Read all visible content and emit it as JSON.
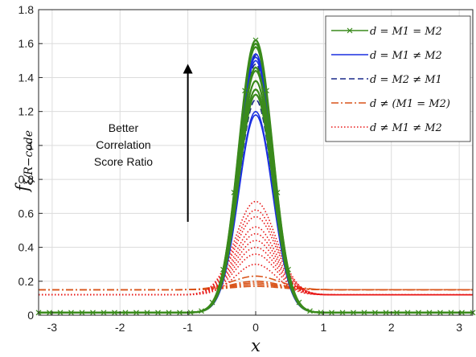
{
  "chart_data": {
    "type": "line",
    "title": "",
    "xlabel": "x",
    "ylabel": "f",
    "ylabel_subscript": "ξ/R−code",
    "xlim": [
      -3.2,
      3.2
    ],
    "ylim": [
      0,
      1.8
    ],
    "xticks": [
      -3,
      -2,
      -1,
      0,
      1,
      2,
      3
    ],
    "yticks": [
      0,
      0.2,
      0.4,
      0.6,
      0.8,
      1,
      1.2,
      1.4,
      1.6,
      1.8
    ],
    "xtick_labels": [
      "-3",
      "-2",
      "-1",
      "0",
      "1",
      "2",
      "3"
    ],
    "ytick_labels": [
      "0",
      "0.2",
      "0.4",
      "0.6",
      "0.8",
      "1",
      "1.2",
      "1.4",
      "1.6",
      "1.8"
    ],
    "grid": true,
    "legend_position": "top-right",
    "annotation": {
      "lines": [
        "Better",
        "Correlation",
        "Score Ratio"
      ],
      "arrow_x": -1,
      "arrow_from_y": 0.55,
      "arrow_to_y": 1.48
    },
    "series": [
      {
        "name": "d = M1 = M2",
        "color": "#3a8a1c",
        "style": "solid-x",
        "family": "gaussian",
        "sigma": 0.25,
        "peaks": [
          1.62,
          1.6,
          1.58,
          1.46,
          1.44,
          1.38,
          1.33,
          1.3
        ],
        "floor": 0.015
      },
      {
        "name": "d = M1 ≠ M2",
        "color": "#1a2fe0",
        "style": "solid",
        "family": "gaussian",
        "sigma": 0.25,
        "peaks": [
          1.54,
          1.52,
          1.5,
          1.3,
          1.2,
          1.18
        ],
        "floor": 0.015
      },
      {
        "name": "d = M2 ≠ M1",
        "color": "#1a2a8a",
        "style": "dashed",
        "family": "gaussian",
        "sigma": 0.25,
        "peaks": [
          1.53,
          1.48,
          1.27
        ],
        "floor": 0.015
      },
      {
        "name": "d ≠ (M1 = M2)",
        "color": "#d9541a",
        "style": "dashdot",
        "family": "bump",
        "sigma": 0.35,
        "peaks": [
          0.23,
          0.2,
          0.19,
          0.18,
          0.17
        ],
        "floor": 0.15
      },
      {
        "name": "d ≠ M1 ≠ M2",
        "color": "#e81515",
        "style": "dotted",
        "family": "bump",
        "sigma": 0.3,
        "peaks": [
          0.67,
          0.62,
          0.58,
          0.52,
          0.48,
          0.44,
          0.4,
          0.36,
          0.3
        ],
        "floor": 0.12
      }
    ]
  }
}
